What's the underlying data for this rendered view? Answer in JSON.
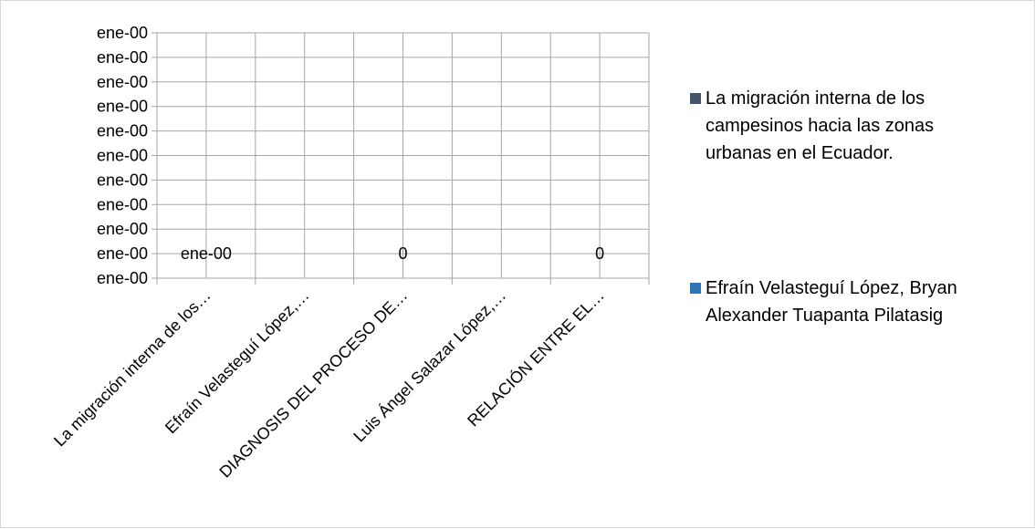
{
  "chart_data": {
    "type": "bar",
    "categories": [
      "La migración interna de los…",
      "Efraín Velasteguí López,…",
      "DIAGNOSIS DEL PROCESO DE…",
      "Luis Ángel Salazar López,…",
      "RELACIÓN ENTRE EL…"
    ],
    "y_tick_labels": [
      "ene-00",
      "ene-00",
      "ene-00",
      "ene-00",
      "ene-00",
      "ene-00",
      "ene-00",
      "ene-00",
      "ene-00",
      "ene-00",
      "ene-00"
    ],
    "series": [
      {
        "name": "La migración interna de los campesinos hacia las zonas urbanas en el Ecuador.",
        "color": "#44546a",
        "values": [
          0,
          0,
          0,
          0,
          0
        ]
      },
      {
        "name": "Efraín Velasteguí López, Bryan Alexander Tuapanta Pilatasig",
        "color": "#2e75b6",
        "values": [
          0,
          0,
          0,
          0,
          0
        ]
      }
    ],
    "data_labels": [
      {
        "category_index": 0,
        "text": "ene-00"
      },
      {
        "category_index": 2,
        "text": "0"
      },
      {
        "category_index": 4,
        "text": "0"
      }
    ],
    "grid": true,
    "legend_position": "right"
  }
}
